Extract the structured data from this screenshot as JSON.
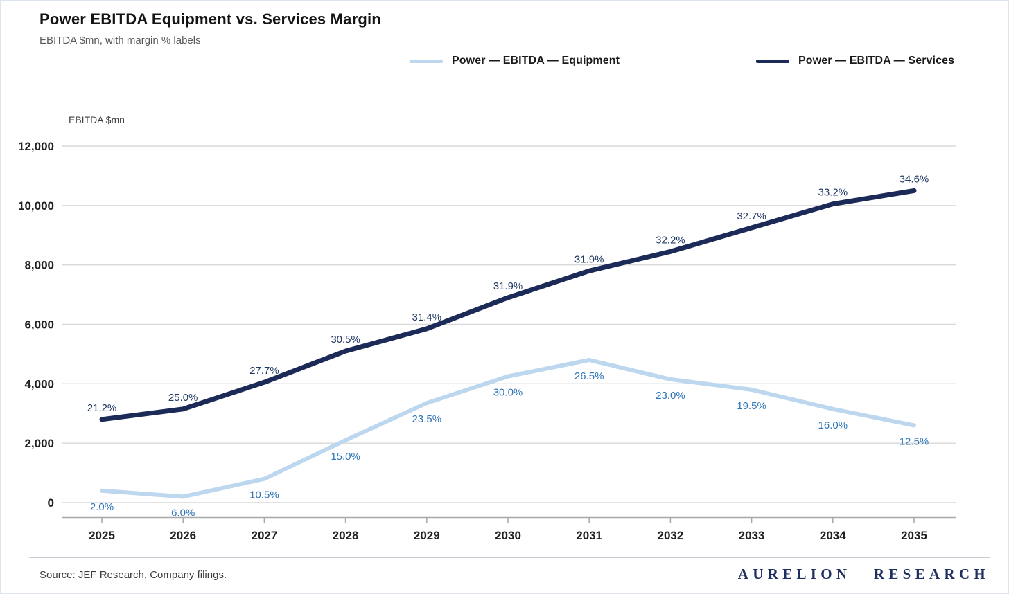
{
  "header": {
    "title": "Power EBITDA Equipment vs. Services Margin",
    "subtitle": "EBITDA $mn, with margin % labels"
  },
  "footer": {
    "source": "Source: JEF Research, Company filings.",
    "brand": "AURELION RESEARCH"
  },
  "colors": {
    "equipment_line": "#bdd7ee",
    "equipment_label": "#2e75b6",
    "services_line": "#1b2a57",
    "services_label": "#1f3864",
    "gridline": "#d9d9d9",
    "axis": "#a8a8a8",
    "tick_label": "#212121",
    "brand_navy": "#1f3060"
  },
  "chart_data": {
    "type": "line",
    "title": "Power EBITDA Equipment vs. Services Margin",
    "subtitle": "EBITDA $mn, with margin % labels",
    "xlabel": "",
    "ylabel": "EBITDA $mn",
    "ylim": [
      0,
      12000
    ],
    "grid": true,
    "legend_position": "top",
    "x": [
      "2025",
      "2026",
      "2027",
      "2028",
      "2029",
      "2030",
      "2031",
      "2032",
      "2033",
      "2034",
      "2035"
    ],
    "y_ticks": [
      "0",
      "2,000",
      "4,000",
      "6,000",
      "8,000",
      "10,000",
      "12,000"
    ],
    "series": [
      {
        "name": "Power — EBITDA — Equipment",
        "color": "#bdd7ee",
        "label_color": "#2e75b6",
        "values": [
          400,
          200,
          800,
          2100,
          3350,
          4250,
          4800,
          4150,
          3800,
          3150,
          2600
        ],
        "margin_labels": [
          "2.0%",
          "6.0%",
          "10.5%",
          "15.0%",
          "23.5%",
          "30.0%",
          "26.5%",
          "23.0%",
          "19.5%",
          "16.0%",
          "12.5%"
        ]
      },
      {
        "name": "Power — EBITDA — Services",
        "color": "#1b2a57",
        "label_color": "#1f3864",
        "values": [
          2800,
          3150,
          4050,
          5100,
          5850,
          6900,
          7800,
          8450,
          9250,
          10050,
          10500
        ],
        "margin_labels": [
          "21.2%",
          "25.0%",
          "27.7%",
          "30.5%",
          "31.4%",
          "31.9%",
          "31.9%",
          "32.2%",
          "32.7%",
          "33.2%",
          "34.6%"
        ]
      }
    ]
  }
}
